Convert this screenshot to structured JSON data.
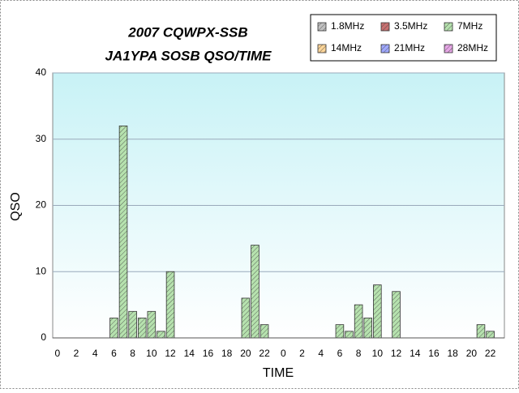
{
  "chart_data": {
    "type": "bar",
    "title": "2007 CQWPX-SSB",
    "subtitle": "JA1YPA SOSB  QSO/TIME",
    "x_label": "TIME",
    "y_label": "QSO",
    "categories": [
      "0",
      null,
      "2",
      null,
      "4",
      null,
      "6",
      null,
      "8",
      null,
      "10",
      null,
      "12",
      null,
      "14",
      null,
      "16",
      null,
      "18",
      null,
      "20",
      null,
      "22",
      null,
      "0",
      null,
      "2",
      null,
      "4",
      null,
      "6",
      null,
      "8",
      null,
      "10",
      null,
      "12",
      null,
      "14",
      null,
      "16",
      null,
      "18",
      null,
      "20",
      null,
      "22",
      null
    ],
    "series": [
      {
        "name": "1.8MHz",
        "color": "#c0c0c0"
      },
      {
        "name": "3.5MHz",
        "color": "#c87070"
      },
      {
        "name": "7MHz",
        "color": "#b6e2ae",
        "values": [
          0,
          0,
          0,
          0,
          0,
          0,
          3,
          32,
          4,
          3,
          4,
          1,
          10,
          0,
          0,
          0,
          0,
          0,
          0,
          0,
          6,
          14,
          2,
          0,
          0,
          0,
          0,
          0,
          0,
          0,
          2,
          1,
          5,
          3,
          8,
          0,
          7,
          0,
          0,
          0,
          0,
          0,
          0,
          0,
          0,
          2,
          1,
          0
        ]
      },
      {
        "name": "14MHz",
        "color": "#ffd699"
      },
      {
        "name": "21MHz",
        "color": "#9fa8ff"
      },
      {
        "name": "28MHz",
        "color": "#e6a6e6"
      }
    ],
    "ylim": [
      0,
      40
    ],
    "yticks": [
      0,
      10,
      20,
      30,
      40
    ],
    "grid": true,
    "legend": "top-right"
  }
}
